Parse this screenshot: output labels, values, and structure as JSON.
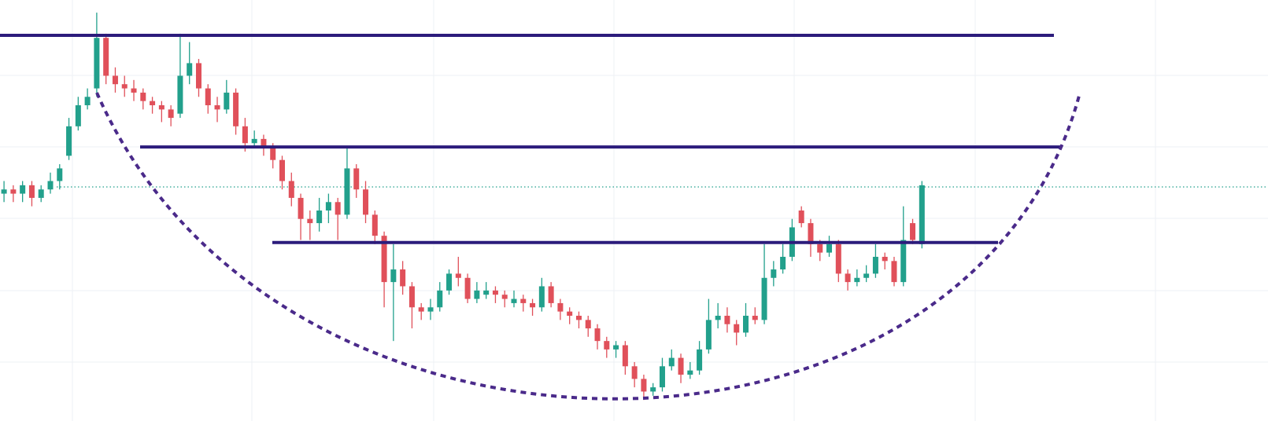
{
  "chart_data": {
    "type": "candlestick",
    "ylim": [
      0,
      100
    ],
    "up_color": "#22a08c",
    "down_color": "#e0505a",
    "levels": [
      91.6,
      65.1,
      42.4
    ],
    "level_color": "#2c1c7c",
    "last_price": 55.6,
    "values": [
      [
        54,
        57,
        52,
        55
      ],
      [
        55,
        56,
        52,
        54
      ],
      [
        54,
        57,
        52,
        56
      ],
      [
        56,
        57,
        51,
        53
      ],
      [
        53,
        56,
        52,
        55
      ],
      [
        55,
        59,
        54,
        57
      ],
      [
        57,
        61,
        55,
        60
      ],
      [
        63,
        72,
        62,
        70
      ],
      [
        70,
        77,
        69,
        75
      ],
      [
        75,
        79,
        74,
        77
      ],
      [
        79,
        97,
        77,
        91
      ],
      [
        91,
        92,
        80,
        82
      ],
      [
        82,
        84,
        78,
        80
      ],
      [
        80,
        82,
        77,
        79
      ],
      [
        79,
        81,
        76,
        78
      ],
      [
        78,
        79,
        74,
        76
      ],
      [
        76,
        77,
        73,
        75
      ],
      [
        75,
        76,
        71,
        74
      ],
      [
        74,
        75,
        70,
        72
      ],
      [
        73,
        92,
        72,
        82
      ],
      [
        82,
        90,
        80,
        85
      ],
      [
        85,
        86,
        77,
        79
      ],
      [
        79,
        80,
        73,
        75
      ],
      [
        75,
        77,
        71,
        74
      ],
      [
        74,
        81,
        73,
        78
      ],
      [
        78,
        79,
        68,
        70
      ],
      [
        70,
        72,
        64,
        66
      ],
      [
        66,
        69,
        65,
        67
      ],
      [
        67,
        68,
        63,
        65
      ],
      [
        65,
        66,
        60,
        62
      ],
      [
        62,
        63,
        55,
        57
      ],
      [
        57,
        59,
        51,
        53
      ],
      [
        53,
        54,
        43,
        48
      ],
      [
        48,
        50,
        43,
        47
      ],
      [
        47,
        53,
        45,
        50
      ],
      [
        50,
        54,
        47,
        52
      ],
      [
        52,
        53,
        43,
        49
      ],
      [
        49,
        65,
        48,
        60
      ],
      [
        60,
        61,
        53,
        55
      ],
      [
        55,
        57,
        47,
        49
      ],
      [
        49,
        50,
        42,
        44
      ],
      [
        44,
        45,
        27,
        33
      ],
      [
        33,
        42,
        19,
        36
      ],
      [
        36,
        38,
        30,
        32
      ],
      [
        32,
        33,
        22,
        27
      ],
      [
        27,
        28,
        24,
        26
      ],
      [
        26,
        29,
        24,
        27
      ],
      [
        27,
        33,
        26,
        31
      ],
      [
        31,
        36,
        30,
        35
      ],
      [
        35,
        39,
        32,
        34
      ],
      [
        34,
        35,
        28,
        29
      ],
      [
        29,
        33,
        28,
        31
      ],
      [
        30,
        33,
        29,
        31
      ],
      [
        31,
        32,
        28,
        30
      ],
      [
        30,
        31,
        27,
        29
      ],
      [
        28,
        31,
        27,
        29
      ],
      [
        29,
        30,
        26,
        28
      ],
      [
        28,
        29,
        25,
        27
      ],
      [
        27,
        34,
        26,
        32
      ],
      [
        32,
        33,
        27,
        28
      ],
      [
        28,
        29,
        24,
        26
      ],
      [
        26,
        27,
        23,
        25
      ],
      [
        25,
        26,
        22,
        24
      ],
      [
        24,
        25,
        20,
        22
      ],
      [
        22,
        23,
        17,
        19
      ],
      [
        19,
        20,
        15,
        17
      ],
      [
        17,
        19,
        15,
        18
      ],
      [
        18,
        19,
        11,
        13
      ],
      [
        13,
        14,
        8,
        10
      ],
      [
        10,
        11,
        5,
        7
      ],
      [
        7,
        9,
        6,
        8
      ],
      [
        8,
        15,
        7,
        13
      ],
      [
        13,
        17,
        12,
        15
      ],
      [
        15,
        16,
        9,
        11
      ],
      [
        11,
        14,
        10,
        12
      ],
      [
        12,
        19,
        11,
        17
      ],
      [
        17,
        29,
        16,
        24
      ],
      [
        24,
        28,
        22,
        25
      ],
      [
        25,
        27,
        21,
        23
      ],
      [
        23,
        24,
        18,
        21
      ],
      [
        21,
        28,
        20,
        25
      ],
      [
        25,
        27,
        23,
        24
      ],
      [
        24,
        42,
        23,
        34
      ],
      [
        34,
        38,
        32,
        36
      ],
      [
        36,
        42,
        35,
        39
      ],
      [
        39,
        48,
        38,
        46
      ],
      [
        50,
        51,
        46,
        47
      ],
      [
        47,
        48,
        39,
        42
      ],
      [
        42,
        43,
        38,
        40
      ],
      [
        40,
        44,
        39,
        42
      ],
      [
        42,
        43,
        33,
        35
      ],
      [
        35,
        36,
        31,
        33
      ],
      [
        33,
        36,
        32,
        34
      ],
      [
        34,
        37,
        33,
        35
      ],
      [
        35,
        42,
        34,
        39
      ],
      [
        39,
        40,
        36,
        38
      ],
      [
        38,
        39,
        32,
        33
      ],
      [
        33,
        51,
        32,
        43
      ],
      [
        47,
        48,
        42,
        43
      ],
      [
        42,
        57,
        41,
        56
      ]
    ]
  }
}
